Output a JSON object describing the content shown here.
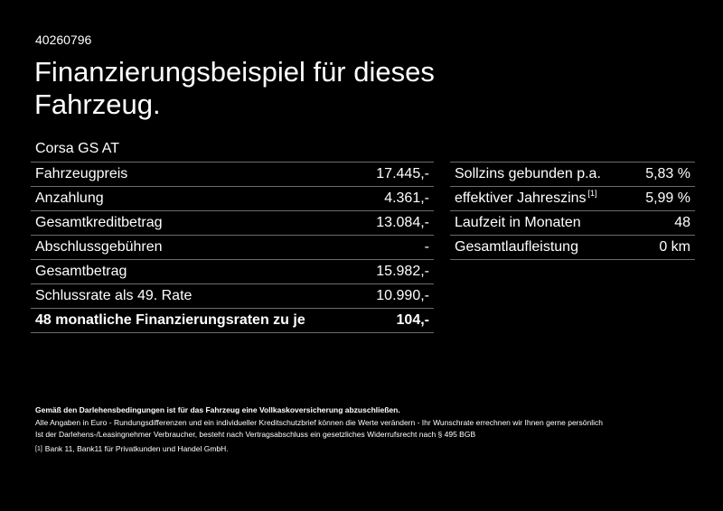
{
  "reference_number": "40260796",
  "title": "Finanzierungsbeispiel für dieses Fahrzeug.",
  "model": "Corsa GS AT",
  "left_table": [
    {
      "label": "Fahrzeugpreis",
      "value": "17.445,-"
    },
    {
      "label": "Anzahlung",
      "value": "4.361,-"
    },
    {
      "label": "Gesamtkreditbetrag",
      "value": "13.084,-"
    },
    {
      "label": "Abschlussgebühren",
      "value": "-"
    },
    {
      "label": "Gesamtbetrag",
      "value": "15.982,-"
    },
    {
      "label": "Schlussrate als 49. Rate",
      "value": "10.990,-"
    },
    {
      "label": "48 monatliche Finanzierungsraten zu je",
      "value": "104,-"
    }
  ],
  "right_table": [
    {
      "label": "Sollzins gebunden p.a.",
      "value": "5,83 %"
    },
    {
      "label": "effektiver Jahreszins",
      "footnote_ref": "[1]",
      "value": "5,99 %"
    },
    {
      "label": "Laufzeit in Monaten",
      "value": "48"
    },
    {
      "label": "Gesamtlaufleistung",
      "value": "0 km"
    }
  ],
  "footer": {
    "bold_line": "Gemäß den Darlehensbedingungen ist für das Fahrzeug eine Vollkaskoversicherung abzuschließen.",
    "line1": "Alle Angaben in Euro - Rundungsdifferenzen und ein individueller Kreditschutzbrief können die Werte verändern - Ihr Wunschrate errechnen wir Ihnen gerne persönlich",
    "line2": "Ist der Darlehens-/Leasingnehmer Verbraucher, besteht nach Vertragsabschluss ein gesetzliches Widerrufsrecht nach § 495 BGB",
    "footnote_marker": "[1]",
    "footnote_text": "Bank 11, Bank11 für Privatkunden und Handel GmbH."
  }
}
